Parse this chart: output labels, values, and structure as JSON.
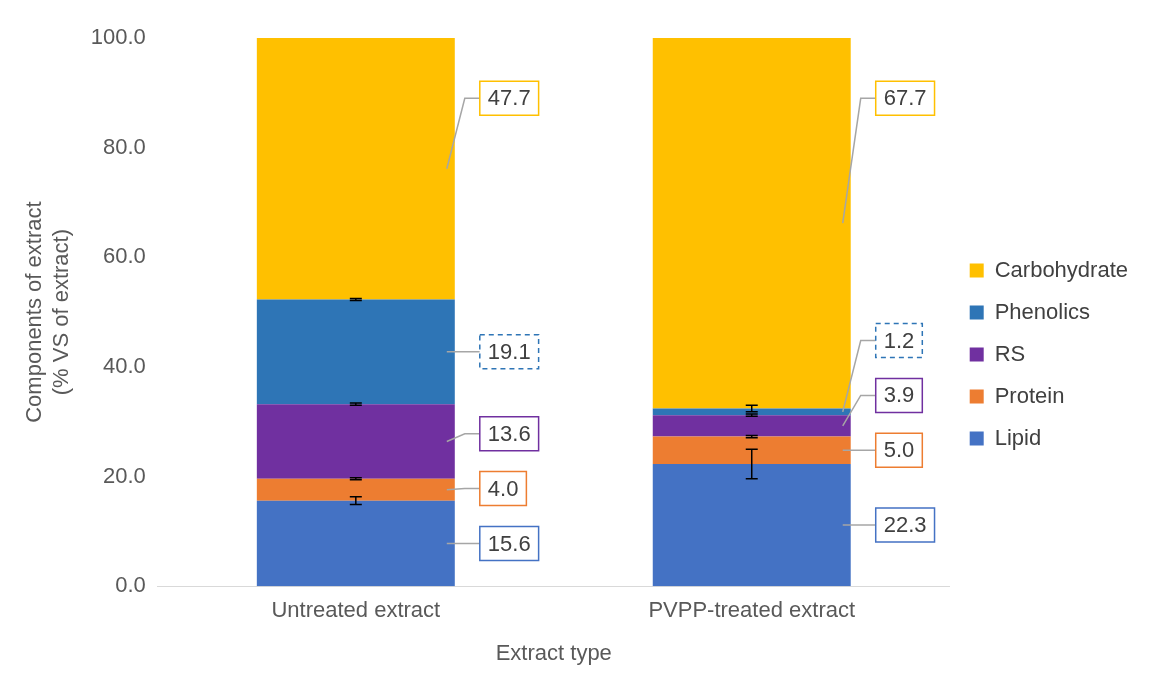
{
  "chart_data": {
    "type": "bar",
    "stacked": true,
    "xlabel": "Extract type",
    "ylabel": "Components of extract\n(% VS of extract)",
    "categories": [
      "Untreated extract",
      "PVPP-treated extract"
    ],
    "series": [
      {
        "name": "Lipid",
        "color": "#4472c4",
        "values": [
          15.6,
          22.3
        ],
        "value_labels": [
          "15.6",
          "22.3"
        ],
        "errors": [
          0.7,
          2.7
        ]
      },
      {
        "name": "Protein",
        "color": "#ed7d31",
        "values": [
          4.0,
          5.0
        ],
        "value_labels": [
          "4.0",
          "5.0"
        ],
        "errors": [
          0.2,
          0.2
        ]
      },
      {
        "name": "RS",
        "color": "#7030a0",
        "values": [
          13.6,
          3.9
        ],
        "value_labels": [
          "13.6",
          "3.9"
        ],
        "errors": [
          0.2,
          0.2
        ]
      },
      {
        "name": "Phenolics",
        "color": "#2e75b6",
        "values": [
          19.1,
          1.2
        ],
        "value_labels": [
          "19.1",
          "1.2"
        ],
        "errors": [
          0.2,
          0.6
        ]
      },
      {
        "name": "Carbohydrate",
        "color": "#ffc000",
        "values": [
          47.7,
          67.7
        ],
        "value_labels": [
          "47.7",
          "67.7"
        ],
        "errors": [
          null,
          null
        ]
      }
    ],
    "ylim": [
      0,
      100
    ],
    "yticks": [
      {
        "value": 0,
        "label": "0.0"
      },
      {
        "value": 20,
        "label": "20.0"
      },
      {
        "value": 40,
        "label": "40.0"
      },
      {
        "value": 60,
        "label": "60.0"
      },
      {
        "value": 80,
        "label": "80.0"
      },
      {
        "value": 100,
        "label": "100.0"
      }
    ],
    "grid": false,
    "legend": "right"
  }
}
